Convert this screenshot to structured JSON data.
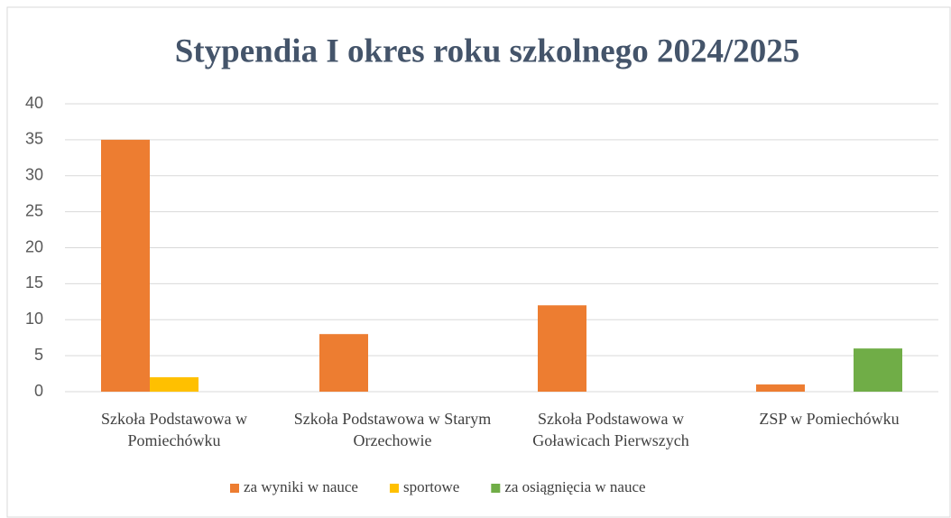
{
  "chart_data": {
    "type": "bar",
    "title": "Stypendia I okres roku szkolnego 2024/2025",
    "categories": [
      "Szkoła Podstawowa w Pomiechówku",
      "Szkoła Podstawowa w Starym Orzechowie",
      "Szkoła Podstawowa w Goławicach Pierwszych",
      "ZSP w Pomiechówku"
    ],
    "series": [
      {
        "name": "za wyniki w nauce",
        "color": "#ed7d31",
        "values": [
          35,
          8,
          12,
          1
        ]
      },
      {
        "name": "sportowe",
        "color": "#ffc000",
        "values": [
          2,
          0,
          0,
          0
        ]
      },
      {
        "name": "za osiągnięcia w nauce",
        "color": "#70ad47",
        "values": [
          0,
          0,
          0,
          6
        ]
      }
    ],
    "ylim": [
      0,
      40
    ],
    "yticks": [
      0,
      5,
      10,
      15,
      20,
      25,
      30,
      35,
      40
    ],
    "grid": true,
    "legend": "bottom"
  }
}
